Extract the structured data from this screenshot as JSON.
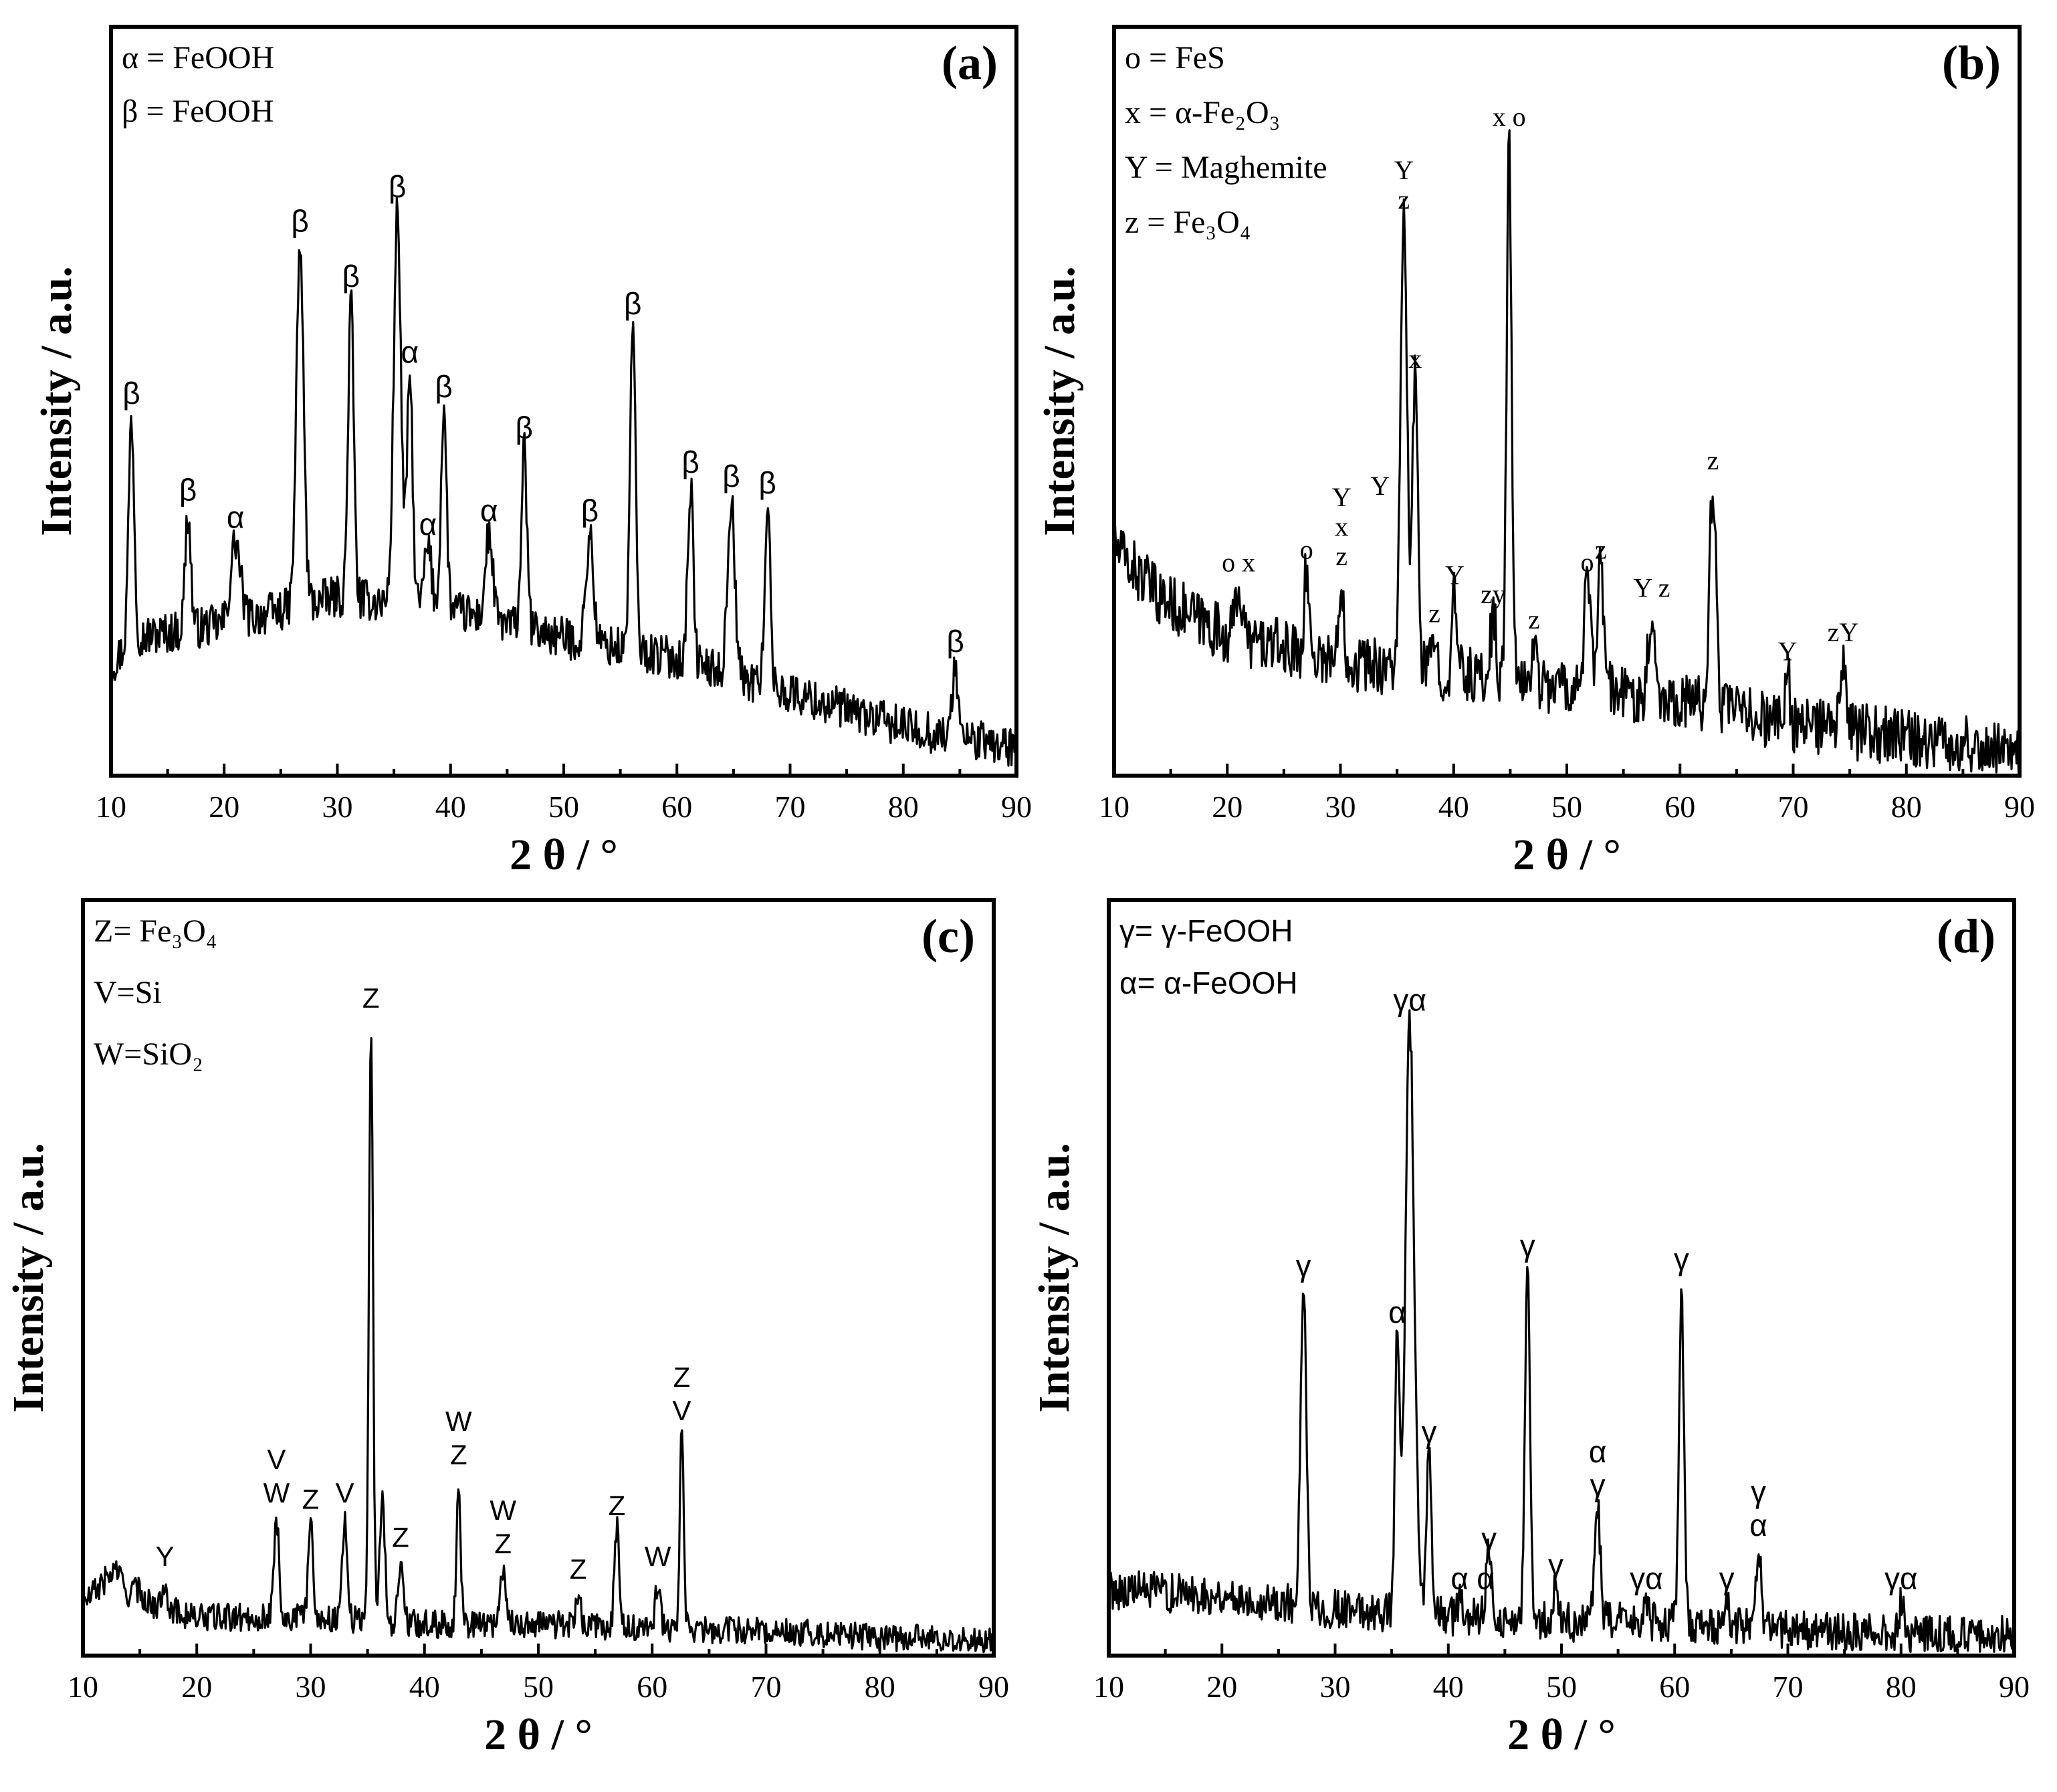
{
  "chart_data": [
    {
      "id": "a",
      "type": "line",
      "panel_label": "(a)",
      "xlabel": "2 θ / °",
      "ylabel": "Intensity / a.u.",
      "xlim": [
        10,
        90
      ],
      "xticks": [
        10,
        20,
        30,
        40,
        50,
        60,
        70,
        80,
        90
      ],
      "ylim": [
        0,
        100
      ],
      "legend_style": "serif",
      "label_style": "greek",
      "legend": [
        "α = FeOOH",
        "β = FeOOH"
      ],
      "baseline": [
        [
          10,
          16
        ],
        [
          12,
          20
        ],
        [
          20,
          22
        ],
        [
          30,
          26
        ],
        [
          40,
          24
        ],
        [
          50,
          20
        ],
        [
          60,
          17
        ],
        [
          70,
          12
        ],
        [
          80,
          7
        ],
        [
          90,
          4
        ]
      ],
      "noise": 3,
      "peaks": [
        {
          "x": 11.8,
          "h": 52,
          "w": 0.35,
          "labels": [
            "β"
          ]
        },
        {
          "x": 16.8,
          "h": 38,
          "w": 0.35,
          "labels": [
            "β"
          ]
        },
        {
          "x": 21.0,
          "h": 34,
          "w": 0.6,
          "labels": [
            "α"
          ]
        },
        {
          "x": 26.7,
          "h": 77,
          "w": 0.45,
          "labels": [
            "β"
          ]
        },
        {
          "x": 31.2,
          "h": 69,
          "w": 0.35,
          "labels": [
            "β"
          ]
        },
        {
          "x": 35.3,
          "h": 82,
          "w": 0.45,
          "labels": [
            "β"
          ]
        },
        {
          "x": 36.4,
          "h": 58,
          "w": 0.35,
          "labels": [
            "α"
          ]
        },
        {
          "x": 38.0,
          "h": 33,
          "w": 0.45,
          "labels": [
            "α"
          ]
        },
        {
          "x": 39.4,
          "h": 53,
          "w": 0.35,
          "labels": [
            "β"
          ]
        },
        {
          "x": 43.4,
          "h": 35,
          "w": 0.45,
          "labels": [
            "α"
          ]
        },
        {
          "x": 46.5,
          "h": 47,
          "w": 0.35,
          "labels": [
            "β"
          ]
        },
        {
          "x": 52.3,
          "h": 35,
          "w": 0.45,
          "labels": [
            "β"
          ]
        },
        {
          "x": 56.1,
          "h": 65,
          "w": 0.35,
          "labels": [
            "β"
          ]
        },
        {
          "x": 61.2,
          "h": 42,
          "w": 0.35,
          "labels": [
            "β"
          ]
        },
        {
          "x": 64.8,
          "h": 40,
          "w": 0.45,
          "labels": [
            "β"
          ]
        },
        {
          "x": 68.0,
          "h": 39,
          "w": 0.35,
          "labels": [
            "β"
          ]
        },
        {
          "x": 84.6,
          "h": 16,
          "w": 0.35,
          "labels": [
            "β"
          ]
        }
      ]
    },
    {
      "id": "b",
      "type": "line",
      "panel_label": "(b)",
      "xlabel": "2 θ / °",
      "ylabel": "Intensity / a.u.",
      "xlim": [
        10,
        90
      ],
      "xticks": [
        10,
        20,
        30,
        40,
        50,
        60,
        70,
        80,
        90
      ],
      "ylim": [
        0,
        100
      ],
      "legend_style": "serif",
      "label_style": "serif",
      "legend": [
        "o = FeS",
        "x = α-Fe₂O₃",
        "Y = Maghemite",
        "z = Fe₃O₄"
      ],
      "baseline": [
        [
          10,
          36
        ],
        [
          14,
          28
        ],
        [
          20,
          22
        ],
        [
          30,
          18
        ],
        [
          40,
          16
        ],
        [
          50,
          14
        ],
        [
          60,
          12
        ],
        [
          70,
          8
        ],
        [
          80,
          6
        ],
        [
          90,
          4
        ]
      ],
      "noise": 4.5,
      "peaks": [
        {
          "x": 21.0,
          "h": 30,
          "w": 0.4,
          "labels": [
            "o x"
          ]
        },
        {
          "x": 27.0,
          "h": 32,
          "w": 0.3,
          "labels": [
            "o"
          ]
        },
        {
          "x": 30.1,
          "h": 31,
          "w": 0.3,
          "labels": [
            "Y",
            "x",
            "z"
          ]
        },
        {
          "x": 33.5,
          "h": 42,
          "w": 0.01,
          "labels": [
            "Y"
          ]
        },
        {
          "x": 35.6,
          "h": 87,
          "w": 0.4,
          "labels": [
            "Y",
            "z"
          ]
        },
        {
          "x": 36.6,
          "h": 62,
          "w": 0.35,
          "labels": [
            "x"
          ]
        },
        {
          "x": 38.3,
          "h": 22,
          "w": 0.3,
          "labels": [
            "z"
          ]
        },
        {
          "x": 40.1,
          "h": 28,
          "w": 0.3,
          "labels": [
            "Y"
          ]
        },
        {
          "x": 43.5,
          "h": 25,
          "w": 0.35,
          "labels": [
            "zy"
          ]
        },
        {
          "x": 44.9,
          "h": 100,
          "w": 0.3,
          "labels": [
            "x o"
          ]
        },
        {
          "x": 47.1,
          "h": 21,
          "w": 0.3,
          "labels": [
            "z"
          ]
        },
        {
          "x": 51.8,
          "h": 30,
          "w": 0.4,
          "labels": [
            "o"
          ]
        },
        {
          "x": 53.0,
          "h": 32,
          "w": 0.4,
          "labels": [
            "z"
          ]
        },
        {
          "x": 57.5,
          "h": 26,
          "w": 0.4,
          "labels": [
            "Y z"
          ]
        },
        {
          "x": 62.9,
          "h": 46,
          "w": 0.4,
          "labels": [
            "z"
          ]
        },
        {
          "x": 69.5,
          "h": 16,
          "w": 0.3,
          "labels": [
            "Y"
          ]
        },
        {
          "x": 74.4,
          "h": 19,
          "w": 0.3,
          "labels": [
            "zY"
          ]
        }
      ]
    },
    {
      "id": "c",
      "type": "line",
      "panel_label": "(c)",
      "xlabel": "2 θ / °",
      "ylabel": "Intensity / a.u.",
      "xlim": [
        10,
        90
      ],
      "xticks": [
        10,
        20,
        30,
        40,
        50,
        60,
        70,
        80,
        90
      ],
      "ylim": [
        0,
        100
      ],
      "legend_style": "serif",
      "label_style": "sans",
      "legend": [
        "Z= Fe₃O₄",
        "V=Si",
        "W=SiO₂"
      ],
      "baseline": [
        [
          10,
          8
        ],
        [
          13,
          14
        ],
        [
          16,
          8
        ],
        [
          20,
          6
        ],
        [
          30,
          6
        ],
        [
          40,
          5
        ],
        [
          50,
          5
        ],
        [
          60,
          4
        ],
        [
          70,
          4
        ],
        [
          80,
          3
        ],
        [
          90,
          2
        ]
      ],
      "noise": 2.2,
      "peaks": [
        {
          "x": 13.8,
          "h": 10,
          "w": 0.6,
          "labels": []
        },
        {
          "x": 17.2,
          "h": 12,
          "w": 0.3,
          "labels": [
            "Y"
          ]
        },
        {
          "x": 27.0,
          "h": 22,
          "w": 0.3,
          "labels": [
            "V",
            "W"
          ]
        },
        {
          "x": 30.0,
          "h": 21,
          "w": 0.3,
          "labels": [
            "Z"
          ]
        },
        {
          "x": 33.0,
          "h": 22,
          "w": 0.3,
          "labels": [
            "V"
          ]
        },
        {
          "x": 35.3,
          "h": 100,
          "w": 0.25,
          "labels": [
            "Z"
          ]
        },
        {
          "x": 36.3,
          "h": 26,
          "w": 0.3,
          "labels": []
        },
        {
          "x": 37.9,
          "h": 15,
          "w": 0.3,
          "labels": [
            "Z"
          ]
        },
        {
          "x": 43.0,
          "h": 28,
          "w": 0.25,
          "labels": [
            "W",
            "Z"
          ]
        },
        {
          "x": 46.9,
          "h": 14,
          "w": 0.35,
          "labels": [
            "W",
            "Z"
          ]
        },
        {
          "x": 53.5,
          "h": 10,
          "w": 0.3,
          "labels": [
            "Z"
          ]
        },
        {
          "x": 56.9,
          "h": 20,
          "w": 0.3,
          "labels": [
            "Z"
          ]
        },
        {
          "x": 60.5,
          "h": 12,
          "w": 0.3,
          "labels": [
            "W"
          ]
        },
        {
          "x": 62.6,
          "h": 35,
          "w": 0.25,
          "labels": [
            "Z",
            "V"
          ]
        }
      ]
    },
    {
      "id": "d",
      "type": "line",
      "panel_label": "(d)",
      "xlabel": "2 θ / °",
      "ylabel": "Intensity / a.u.",
      "xlim": [
        10,
        90
      ],
      "xticks": [
        10,
        20,
        30,
        40,
        50,
        60,
        70,
        80,
        90
      ],
      "ylim": [
        0,
        100
      ],
      "legend_style": "sans",
      "label_style": "greek",
      "legend": [
        "γ= γ-FeOOH",
        "α= α-FeOOH"
      ],
      "baseline": [
        [
          10,
          10
        ],
        [
          20,
          9
        ],
        [
          30,
          7
        ],
        [
          40,
          6
        ],
        [
          50,
          5
        ],
        [
          60,
          5
        ],
        [
          70,
          4
        ],
        [
          80,
          3
        ],
        [
          90,
          3
        ]
      ],
      "noise": 3,
      "peaks": [
        {
          "x": 27.2,
          "h": 55,
          "w": 0.35,
          "labels": [
            "γ"
          ]
        },
        {
          "x": 35.5,
          "h": 48,
          "w": 0.3,
          "labels": [
            "α"
          ]
        },
        {
          "x": 36.6,
          "h": 95,
          "w": 0.55,
          "labels": [
            "γα"
          ]
        },
        {
          "x": 38.3,
          "h": 30,
          "w": 0.3,
          "labels": [
            "γ"
          ]
        },
        {
          "x": 41.0,
          "h": 8,
          "w": 0.3,
          "labels": [
            "α"
          ]
        },
        {
          "x": 43.3,
          "h": 8,
          "w": 0.3,
          "labels": [
            "α"
          ]
        },
        {
          "x": 43.6,
          "h": 14,
          "w": 0.3,
          "labels": [
            "γ"
          ]
        },
        {
          "x": 47.0,
          "h": 58,
          "w": 0.3,
          "labels": [
            "γ"
          ]
        },
        {
          "x": 49.5,
          "h": 10,
          "w": 0.3,
          "labels": [
            "γ"
          ]
        },
        {
          "x": 53.2,
          "h": 22,
          "w": 0.35,
          "labels": [
            "α",
            "γ"
          ]
        },
        {
          "x": 57.5,
          "h": 8,
          "w": 0.3,
          "labels": [
            "γα"
          ]
        },
        {
          "x": 60.6,
          "h": 56,
          "w": 0.3,
          "labels": [
            "γ"
          ]
        },
        {
          "x": 64.6,
          "h": 8,
          "w": 0.3,
          "labels": [
            "γ"
          ]
        },
        {
          "x": 67.4,
          "h": 16,
          "w": 0.35,
          "labels": [
            "γ",
            "α"
          ]
        },
        {
          "x": 80.0,
          "h": 8,
          "w": 0.3,
          "labels": [
            "γα"
          ]
        }
      ]
    }
  ]
}
